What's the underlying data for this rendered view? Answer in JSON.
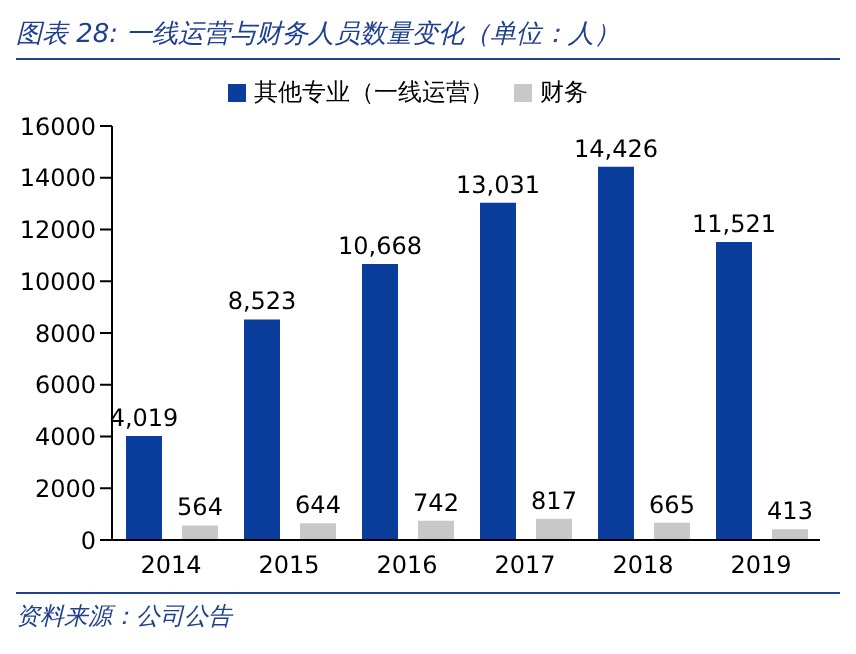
{
  "chart_data": {
    "type": "bar",
    "title": "图表 28:  一线运营与财务人员数量变化（单位：人）",
    "categories": [
      "2014",
      "2015",
      "2016",
      "2017",
      "2018",
      "2019"
    ],
    "series": [
      {
        "name": "其他专业（一线运营）",
        "color": "#0a3d9c",
        "values": [
          4019,
          8523,
          10668,
          13031,
          14426,
          11521
        ],
        "value_labels": [
          "4,019",
          "8,523",
          "10,668",
          "13,031",
          "14,426",
          "11,521"
        ]
      },
      {
        "name": "财务",
        "color": "#c8c8c8",
        "values": [
          564,
          644,
          742,
          817,
          665,
          413
        ],
        "value_labels": [
          "564",
          "644",
          "742",
          "817",
          "665",
          "413"
        ]
      }
    ],
    "ylim": [
      0,
      16000
    ],
    "yticks": [
      0,
      2000,
      4000,
      6000,
      8000,
      10000,
      12000,
      14000,
      16000
    ],
    "grid": false,
    "legend": "top",
    "annotations": [
      "资料来源：公司公告"
    ]
  }
}
